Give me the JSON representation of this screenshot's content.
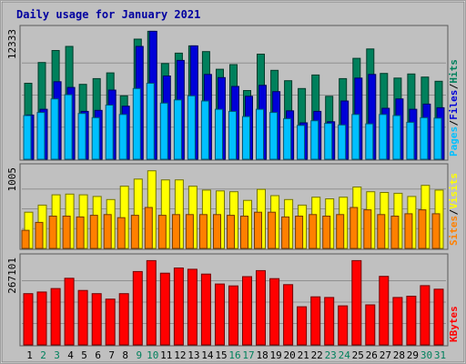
{
  "chart_data": {
    "type": "bar",
    "title": "Daily usage for January 2021",
    "categories": [
      "1",
      "2",
      "3",
      "4",
      "5",
      "6",
      "7",
      "8",
      "9",
      "10",
      "11",
      "12",
      "13",
      "14",
      "15",
      "16",
      "17",
      "18",
      "19",
      "20",
      "21",
      "22",
      "23",
      "24",
      "25",
      "26",
      "27",
      "28",
      "29",
      "30",
      "31"
    ],
    "weekend_days": [
      "2",
      "3",
      "9",
      "10",
      "16",
      "17",
      "23",
      "24",
      "30",
      "31"
    ],
    "colors": {
      "background": "#C0C0C0",
      "title": "#0000A0",
      "hits": "#00805C",
      "files": "#0000D8",
      "pages": "#00C0FF",
      "visits": "#FFFF00",
      "sites": "#FF8000",
      "kbytes": "#FF0000",
      "weekday_label": "#000000",
      "weekend_label": "#00805C"
    },
    "panels": [
      {
        "id": "hits-files-pages",
        "ymax_label": "12333",
        "ylim": [
          0,
          12333
        ],
        "legend": [
          "Pages",
          "Files",
          "Hits"
        ],
        "series": [
          {
            "name": "Hits",
            "values": [
              7300,
              9300,
              10450,
              10850,
              7200,
              7750,
              8300,
              6100,
              11550,
              12300,
              9200,
              10200,
              10900,
              10350,
              8650,
              9100,
              6600,
              10100,
              8550,
              7550,
              6800,
              8100,
              6050,
              7750,
              9700,
              10600,
              8250,
              7800,
              8200,
              7900,
              7500
            ]
          },
          {
            "name": "Files",
            "values": [
              4250,
              4800,
              7450,
              6900,
              4600,
              4700,
              6650,
              5100,
              10850,
              12300,
              8000,
              9500,
              10900,
              8150,
              7850,
              7000,
              6050,
              7100,
              6500,
              4650,
              3500,
              4600,
              3600,
              5600,
              7800,
              8150,
              4900,
              5800,
              4800,
              5300,
              4950
            ]
          },
          {
            "name": "Pages",
            "values": [
              4200,
              4500,
              5800,
              6200,
              4400,
              4000,
              5200,
              4300,
              6800,
              7300,
              5400,
              5700,
              6100,
              5600,
              4800,
              4600,
              4100,
              4800,
              4500,
              3900,
              3250,
              3700,
              3450,
              3300,
              4300,
              3400,
              4300,
              4200,
              3550,
              4000,
              3950
            ]
          }
        ]
      },
      {
        "id": "visits-sites",
        "ymax_label": "1005",
        "ylim": [
          0,
          1005
        ],
        "legend": [
          "Sites",
          "Visits"
        ],
        "series": [
          {
            "name": "Visits",
            "values": [
              460,
              550,
              680,
              690,
              680,
              660,
              620,
              790,
              880,
              985,
              870,
              870,
              790,
              740,
              730,
              720,
              610,
              750,
              670,
              620,
              550,
              650,
              630,
              650,
              780,
              720,
              710,
              700,
              660,
              800,
              740
            ]
          },
          {
            "name": "Sites",
            "values": [
              230,
              330,
              410,
              410,
              400,
              420,
              430,
              390,
              420,
              520,
              420,
              430,
              430,
              430,
              430,
              420,
              410,
              460,
              460,
              400,
              410,
              430,
              410,
              430,
              520,
              490,
              430,
              410,
              440,
              490,
              440
            ]
          }
        ]
      },
      {
        "id": "kbytes",
        "ymax_label": "267101",
        "ylim": [
          0,
          267101
        ],
        "legend": [
          "KBytes"
        ],
        "series": [
          {
            "name": "KBytes",
            "values": [
              160000,
              165000,
              176000,
              208000,
              170000,
              160000,
              143000,
              160000,
              229000,
              263000,
              224000,
              240000,
              236000,
              221000,
              190000,
              184000,
              213000,
              232000,
              207000,
              188000,
              119000,
              150000,
              148000,
              122000,
              263000,
              125000,
              214000,
              148000,
              152000,
              185000,
              174000
            ]
          }
        ]
      }
    ]
  }
}
